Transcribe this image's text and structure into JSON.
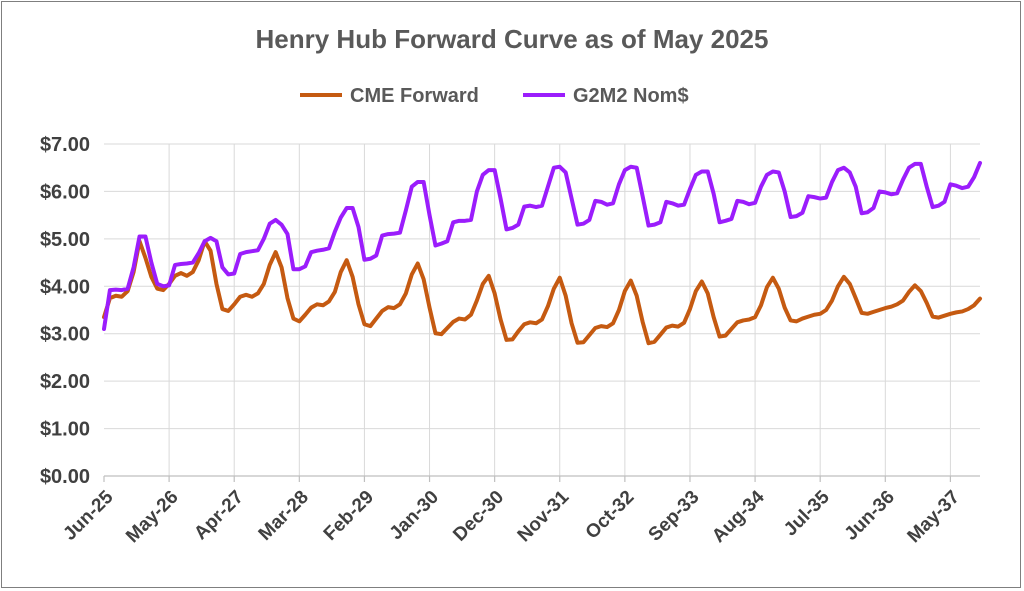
{
  "chart_data": {
    "type": "line",
    "title": "Henry Hub Forward Curve as of May 2025",
    "xlabel": "",
    "ylabel": "",
    "ylim": [
      0,
      7
    ],
    "y_ticks": [
      "$0.00",
      "$1.00",
      "$2.00",
      "$3.00",
      "$4.00",
      "$5.00",
      "$6.00",
      "$7.00"
    ],
    "x_tick_labels": [
      "Jun-25",
      "May-26",
      "Apr-27",
      "Mar-28",
      "Feb-29",
      "Jan-30",
      "Dec-30",
      "Nov-31",
      "Oct-32",
      "Sep-33",
      "Aug-34",
      "Jul-35",
      "Jun-36",
      "May-37"
    ],
    "x_start": "Jun-25",
    "x_end": "Dec-37",
    "legend_position": "top",
    "grid": true,
    "series": [
      {
        "name": "CME Forward",
        "color": "#C55A11",
        "values": [
          3.35,
          3.75,
          3.8,
          3.78,
          3.9,
          4.3,
          4.95,
          4.6,
          4.2,
          3.95,
          3.92,
          4.05,
          4.22,
          4.28,
          4.22,
          4.3,
          4.55,
          4.95,
          4.75,
          4.05,
          3.52,
          3.48,
          3.62,
          3.78,
          3.82,
          3.78,
          3.85,
          4.05,
          4.45,
          4.72,
          4.4,
          3.75,
          3.32,
          3.26,
          3.4,
          3.55,
          3.62,
          3.6,
          3.68,
          3.88,
          4.3,
          4.55,
          4.2,
          3.62,
          3.2,
          3.16,
          3.32,
          3.48,
          3.56,
          3.54,
          3.62,
          3.85,
          4.25,
          4.48,
          4.15,
          3.55,
          3.01,
          2.99,
          3.12,
          3.25,
          3.32,
          3.3,
          3.4,
          3.7,
          4.05,
          4.22,
          3.85,
          3.3,
          2.87,
          2.88,
          3.05,
          3.2,
          3.24,
          3.22,
          3.3,
          3.58,
          3.95,
          4.18,
          3.8,
          3.22,
          2.81,
          2.82,
          2.97,
          3.12,
          3.16,
          3.14,
          3.22,
          3.5,
          3.9,
          4.12,
          3.8,
          3.25,
          2.8,
          2.83,
          2.98,
          3.13,
          3.17,
          3.15,
          3.23,
          3.52,
          3.9,
          4.1,
          3.85,
          3.35,
          2.94,
          2.96,
          3.1,
          3.24,
          3.28,
          3.3,
          3.35,
          3.6,
          3.98,
          4.18,
          3.95,
          3.55,
          3.28,
          3.26,
          3.32,
          3.36,
          3.4,
          3.42,
          3.5,
          3.7,
          4.0,
          4.2,
          4.05,
          3.75,
          3.44,
          3.42,
          3.46,
          3.5,
          3.54,
          3.57,
          3.62,
          3.7,
          3.88,
          4.02,
          3.9,
          3.65,
          3.36,
          3.34,
          3.38,
          3.42,
          3.45,
          3.47,
          3.52,
          3.6,
          3.74
        ]
      },
      {
        "name": "G2M2 Nom$",
        "color": "#9B1DFC",
        "values": [
          3.1,
          3.92,
          3.93,
          3.92,
          3.95,
          4.4,
          5.05,
          5.05,
          4.5,
          4.05,
          4.0,
          4.02,
          4.45,
          4.47,
          4.48,
          4.5,
          4.7,
          4.95,
          5.02,
          4.95,
          4.4,
          4.25,
          4.27,
          4.68,
          4.72,
          4.74,
          4.76,
          5.0,
          5.32,
          5.4,
          5.3,
          5.1,
          4.36,
          4.36,
          4.42,
          4.72,
          4.75,
          4.77,
          4.8,
          5.15,
          5.45,
          5.65,
          5.65,
          5.25,
          4.56,
          4.58,
          4.65,
          5.07,
          5.1,
          5.11,
          5.13,
          5.6,
          6.1,
          6.2,
          6.2,
          5.5,
          4.86,
          4.9,
          4.95,
          5.35,
          5.38,
          5.38,
          5.4,
          6.0,
          6.35,
          6.45,
          6.45,
          5.85,
          5.2,
          5.23,
          5.3,
          5.68,
          5.7,
          5.67,
          5.7,
          6.1,
          6.5,
          6.52,
          6.4,
          5.85,
          5.3,
          5.32,
          5.4,
          5.8,
          5.78,
          5.72,
          5.75,
          6.15,
          6.45,
          6.52,
          6.5,
          5.9,
          5.28,
          5.3,
          5.35,
          5.78,
          5.75,
          5.7,
          5.72,
          6.05,
          6.35,
          6.42,
          6.42,
          5.95,
          5.35,
          5.38,
          5.42,
          5.8,
          5.78,
          5.73,
          5.76,
          6.1,
          6.35,
          6.42,
          6.4,
          6.0,
          5.46,
          5.48,
          5.55,
          5.9,
          5.88,
          5.85,
          5.87,
          6.2,
          6.45,
          6.5,
          6.4,
          6.1,
          5.54,
          5.56,
          5.65,
          6.0,
          5.98,
          5.94,
          5.96,
          6.25,
          6.5,
          6.58,
          6.58,
          6.1,
          5.67,
          5.7,
          5.78,
          6.15,
          6.12,
          6.07,
          6.1,
          6.3,
          6.6
        ]
      }
    ]
  }
}
